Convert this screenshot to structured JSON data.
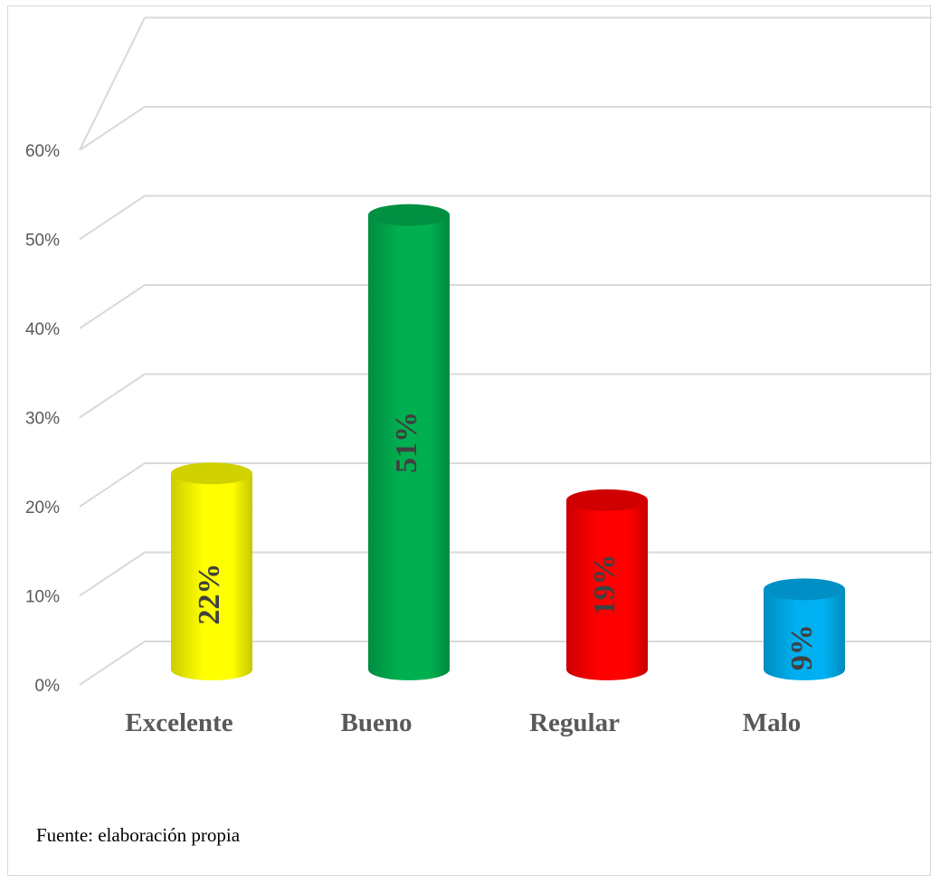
{
  "chart_data": {
    "type": "bar",
    "style": "3d-cylinder",
    "categories": [
      "Excelente",
      "Bueno",
      "Regular",
      "Malo"
    ],
    "values": [
      22,
      51,
      19,
      9
    ],
    "data_labels": [
      "22%",
      "51%",
      "19%",
      "9%"
    ],
    "colors": [
      "#ffff00",
      "#00b050",
      "#ff0000",
      "#00b0f0"
    ],
    "yticks": [
      "0%",
      "10%",
      "20%",
      "30%",
      "40%",
      "50%",
      "60%"
    ],
    "ylim": [
      0,
      60
    ],
    "grid": true,
    "legend": "none"
  },
  "footer": {
    "source": "Fuente: elaboración propia"
  }
}
